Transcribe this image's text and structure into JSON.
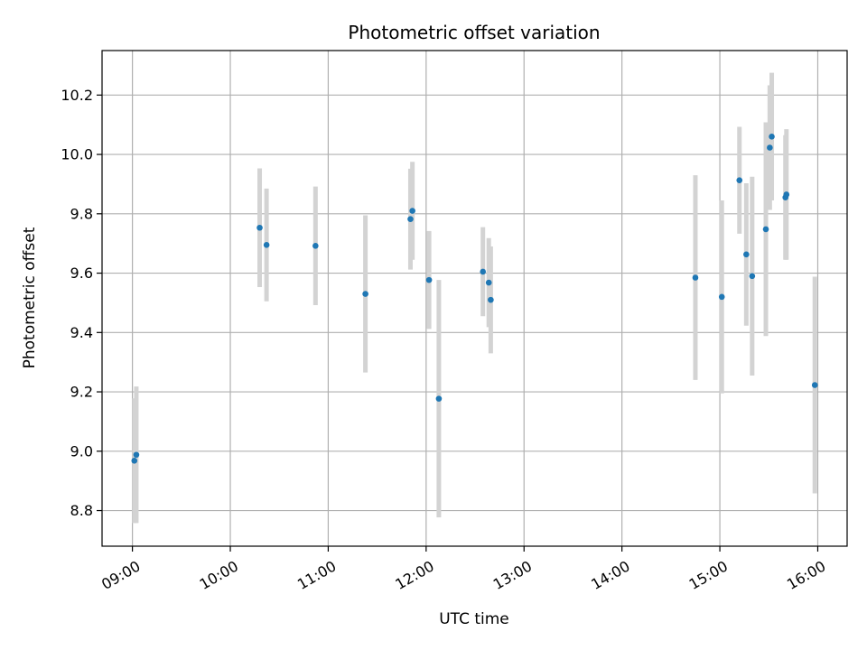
{
  "chart_data": {
    "type": "scatter",
    "title": "Photometric offset variation",
    "xlabel": "UTC time",
    "ylabel": "Photometric offset",
    "x_unit": "hours UTC",
    "xlim": [
      8.69,
      16.3
    ],
    "ylim": [
      8.68,
      10.35
    ],
    "x_ticks": [
      {
        "value": 9,
        "label": "09:00"
      },
      {
        "value": 10,
        "label": "10:00"
      },
      {
        "value": 11,
        "label": "11:00"
      },
      {
        "value": 12,
        "label": "12:00"
      },
      {
        "value": 13,
        "label": "13:00"
      },
      {
        "value": 14,
        "label": "14:00"
      },
      {
        "value": 15,
        "label": "15:00"
      },
      {
        "value": 16,
        "label": "16:00"
      }
    ],
    "y_ticks": [
      {
        "value": 8.8,
        "label": "8.8"
      },
      {
        "value": 9.0,
        "label": "9.0"
      },
      {
        "value": 9.2,
        "label": "9.2"
      },
      {
        "value": 9.4,
        "label": "9.4"
      },
      {
        "value": 9.6,
        "label": "9.6"
      },
      {
        "value": 9.8,
        "label": "9.8"
      },
      {
        "value": 10.0,
        "label": "10.0"
      },
      {
        "value": 10.2,
        "label": "10.2"
      }
    ],
    "grid": true,
    "colors": {
      "point": "#1f77b4",
      "errorbar": "#d3d3d3",
      "grid": "#b0b0b0"
    },
    "points": [
      {
        "x": 9.02,
        "y": 8.968,
        "err": 0.21
      },
      {
        "x": 9.04,
        "y": 8.988,
        "err": 0.23
      },
      {
        "x": 10.3,
        "y": 9.753,
        "err": 0.2
      },
      {
        "x": 10.37,
        "y": 9.695,
        "err": 0.19
      },
      {
        "x": 10.87,
        "y": 9.692,
        "err": 0.2
      },
      {
        "x": 11.38,
        "y": 9.53,
        "err": 0.265
      },
      {
        "x": 11.84,
        "y": 9.782,
        "err": 0.17
      },
      {
        "x": 11.86,
        "y": 9.81,
        "err": 0.165
      },
      {
        "x": 12.03,
        "y": 9.577,
        "err": 0.165
      },
      {
        "x": 12.13,
        "y": 9.177,
        "err": 0.4
      },
      {
        "x": 12.58,
        "y": 9.605,
        "err": 0.15
      },
      {
        "x": 12.64,
        "y": 9.568,
        "err": 0.15
      },
      {
        "x": 12.66,
        "y": 9.51,
        "err": 0.18
      },
      {
        "x": 14.75,
        "y": 9.585,
        "err": 0.345
      },
      {
        "x": 15.02,
        "y": 9.52,
        "err": 0.325
      },
      {
        "x": 15.2,
        "y": 9.913,
        "err": 0.18
      },
      {
        "x": 15.27,
        "y": 9.663,
        "err": 0.24
      },
      {
        "x": 15.33,
        "y": 9.59,
        "err": 0.335
      },
      {
        "x": 15.47,
        "y": 9.748,
        "err": 0.36
      },
      {
        "x": 15.51,
        "y": 10.023,
        "err": 0.21
      },
      {
        "x": 15.53,
        "y": 10.06,
        "err": 0.215
      },
      {
        "x": 15.67,
        "y": 9.855,
        "err": 0.21
      },
      {
        "x": 15.68,
        "y": 9.865,
        "err": 0.22
      },
      {
        "x": 15.97,
        "y": 9.223,
        "err": 0.365
      }
    ]
  }
}
